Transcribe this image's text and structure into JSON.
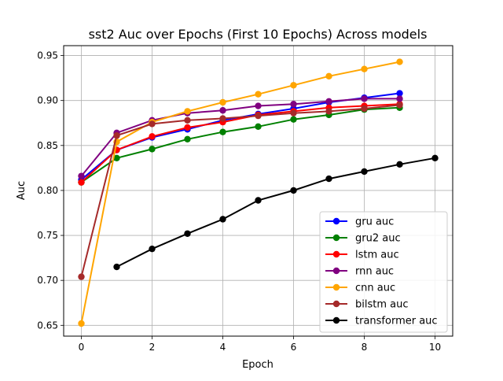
{
  "chart_data": {
    "type": "line",
    "title": "sst2 Auc over Epochs (First 10 Epochs) Across models",
    "xlabel": "Epoch",
    "ylabel": "Auc",
    "xlim": [
      -0.5,
      10.5
    ],
    "ylim": [
      0.638,
      0.961
    ],
    "xticks": [
      0,
      2,
      4,
      6,
      8,
      10
    ],
    "yticks": [
      0.65,
      0.7,
      0.75,
      0.8,
      0.85,
      0.9,
      0.95
    ],
    "grid": true,
    "legend_position": "lower-right",
    "series": [
      {
        "name": "gru auc",
        "color": "#0000ff",
        "x": [
          0,
          1,
          2,
          3,
          4,
          5,
          6,
          7,
          8,
          9
        ],
        "values": [
          0.812,
          0.845,
          0.859,
          0.868,
          0.878,
          0.885,
          0.891,
          0.898,
          0.903,
          0.908
        ]
      },
      {
        "name": "gru2 auc",
        "color": "#008000",
        "x": [
          0,
          1,
          2,
          3,
          4,
          5,
          6,
          7,
          8,
          9
        ],
        "values": [
          0.809,
          0.836,
          0.846,
          0.857,
          0.865,
          0.871,
          0.879,
          0.884,
          0.89,
          0.892
        ]
      },
      {
        "name": "lstm auc",
        "color": "#ff0000",
        "x": [
          0,
          1,
          2,
          3,
          4,
          5,
          6,
          7,
          8,
          9
        ],
        "values": [
          0.809,
          0.845,
          0.86,
          0.87,
          0.876,
          0.884,
          0.888,
          0.892,
          0.894,
          0.896
        ]
      },
      {
        "name": "rnn auc",
        "color": "#800080",
        "x": [
          0,
          1,
          2,
          3,
          4,
          5,
          6,
          7,
          8,
          9
        ],
        "values": [
          0.816,
          0.864,
          0.878,
          0.886,
          0.889,
          0.894,
          0.896,
          0.899,
          0.902,
          0.902
        ]
      },
      {
        "name": "cnn auc",
        "color": "#ffa500",
        "x": [
          0,
          1,
          2,
          3,
          4,
          5,
          6,
          7,
          8,
          9
        ],
        "values": [
          0.652,
          0.854,
          0.876,
          0.888,
          0.898,
          0.907,
          0.917,
          0.927,
          0.935,
          0.943
        ]
      },
      {
        "name": "bilstm auc",
        "color": "#a52a2a",
        "x": [
          0,
          1,
          2,
          3,
          4,
          5,
          6,
          7,
          8,
          9
        ],
        "values": [
          0.704,
          0.861,
          0.874,
          0.878,
          0.88,
          0.883,
          0.886,
          0.888,
          0.891,
          0.895
        ]
      },
      {
        "name": "transformer auc",
        "color": "#000000",
        "x": [
          1,
          2,
          3,
          4,
          5,
          6,
          7,
          8,
          9,
          10
        ],
        "values": [
          0.715,
          0.735,
          0.752,
          0.768,
          0.789,
          0.8,
          0.813,
          0.821,
          0.829,
          0.836
        ]
      }
    ]
  }
}
